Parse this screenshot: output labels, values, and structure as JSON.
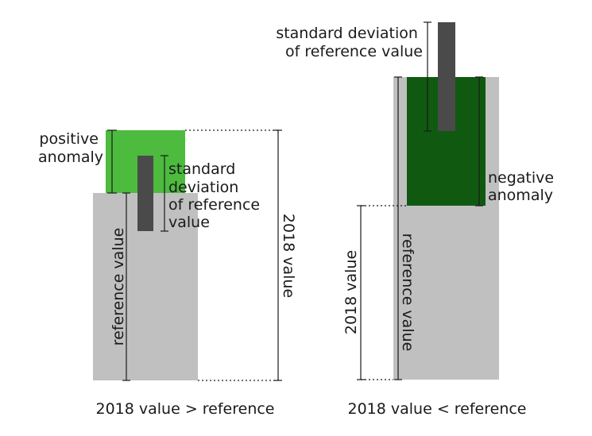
{
  "left_panel": {
    "positive_anomaly_label": [
      "positive",
      "anomaly"
    ],
    "std_dev_label": [
      "standard",
      "deviation",
      "of reference",
      "value"
    ],
    "reference_value_label": "reference value",
    "value_2018_label": "2018  value",
    "caption": "2018  value > reference"
  },
  "right_panel": {
    "std_dev_label": [
      "standard deviation",
      "of reference value"
    ],
    "negative_anomaly_label": [
      "negative",
      "anomaly"
    ],
    "reference_value_label": "reference value",
    "value_2018_label": "2018  value",
    "caption": "2018  value < reference"
  },
  "colors": {
    "reference_bar": "#c0c0c0",
    "positive_anomaly": "#4cbb3e",
    "negative_anomaly": "#0f5a10",
    "std_dev_bar": "#4a4a4a"
  }
}
